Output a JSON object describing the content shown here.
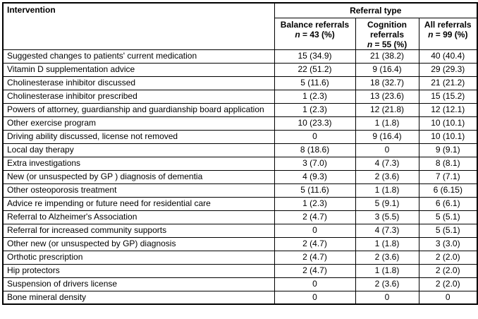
{
  "table": {
    "col1_header": "Intervention",
    "group_header": "Referral type",
    "columns": [
      {
        "label": "Balance referrals",
        "n_symbol": "n",
        "n_stats": "= 43 (%)"
      },
      {
        "label": "Cognition referrals",
        "n_symbol": "n",
        "n_stats": "= 55 (%)"
      },
      {
        "label": "All referrals",
        "n_symbol": "n",
        "n_stats": "= 99 (%)"
      }
    ],
    "rows": [
      {
        "intervention": "Suggested changes to patients' current medication",
        "balance": "15 (34.9)",
        "cognition": "21 (38.2)",
        "all": "40 (40.4)"
      },
      {
        "intervention": "Vitamin D supplementation advice",
        "balance": "22 (51.2)",
        "cognition": "9 (16.4)",
        "all": "29 (29.3)"
      },
      {
        "intervention": "Cholinesterase inhibitor discussed",
        "balance": "5 (11.6)",
        "cognition": "18 (32.7)",
        "all": "21 (21.2)"
      },
      {
        "intervention": "Cholinesterase inhibitor prescribed",
        "balance": "1 (2.3)",
        "cognition": "13 (23.6)",
        "all": "15 (15.2)"
      },
      {
        "intervention": "Powers of attorney, guardianship and guardianship board application",
        "balance": "1 (2.3)",
        "cognition": "12 (21.8)",
        "all": "12 (12.1)"
      },
      {
        "intervention": "Other exercise program",
        "balance": "10 (23.3)",
        "cognition": "1 (1.8)",
        "all": "10 (10.1)"
      },
      {
        "intervention": "Driving ability discussed, license not removed",
        "balance": "0",
        "cognition": "9 (16.4)",
        "all": "10 (10.1)"
      },
      {
        "intervention": "Local day therapy",
        "balance": "8 (18.6)",
        "cognition": "0",
        "all": "9 (9.1)"
      },
      {
        "intervention": "Extra investigations",
        "balance": "3 (7.0)",
        "cognition": "4 (7.3)",
        "all": "8 (8.1)"
      },
      {
        "intervention": "New (or unsuspected by GP ) diagnosis of dementia",
        "balance": "4 (9.3)",
        "cognition": "2 (3.6)",
        "all": "7 (7.1)"
      },
      {
        "intervention": "Other osteoporosis treatment",
        "balance": "5 (11.6)",
        "cognition": "1 (1.8)",
        "all": "6 (6.15)"
      },
      {
        "intervention": "Advice re impending or future need for residential care",
        "balance": "1 (2.3)",
        "cognition": "5 (9.1)",
        "all": "6 (6.1)"
      },
      {
        "intervention": "Referral to Alzheimer's Association",
        "balance": "2 (4.7)",
        "cognition": "3 (5.5)",
        "all": "5 (5.1)"
      },
      {
        "intervention": "Referral for increased community supports",
        "balance": "0",
        "cognition": "4 (7.3)",
        "all": "5 (5.1)"
      },
      {
        "intervention": "Other new (or unsuspected by GP) diagnosis",
        "balance": "2 (4.7)",
        "cognition": "1 (1.8)",
        "all": "3 (3.0)"
      },
      {
        "intervention": "Orthotic prescription",
        "balance": "2 (4.7)",
        "cognition": "2 (3.6)",
        "all": "2 (2.0)"
      },
      {
        "intervention": "Hip protectors",
        "balance": "2 (4.7)",
        "cognition": "1 (1.8)",
        "all": "2 (2.0)"
      },
      {
        "intervention": "Suspension of drivers license",
        "balance": "0",
        "cognition": "2 (3.6)",
        "all": "2 (2.0)"
      },
      {
        "intervention": "Bone mineral density",
        "balance": "0",
        "cognition": "0",
        "all": "0"
      }
    ]
  }
}
